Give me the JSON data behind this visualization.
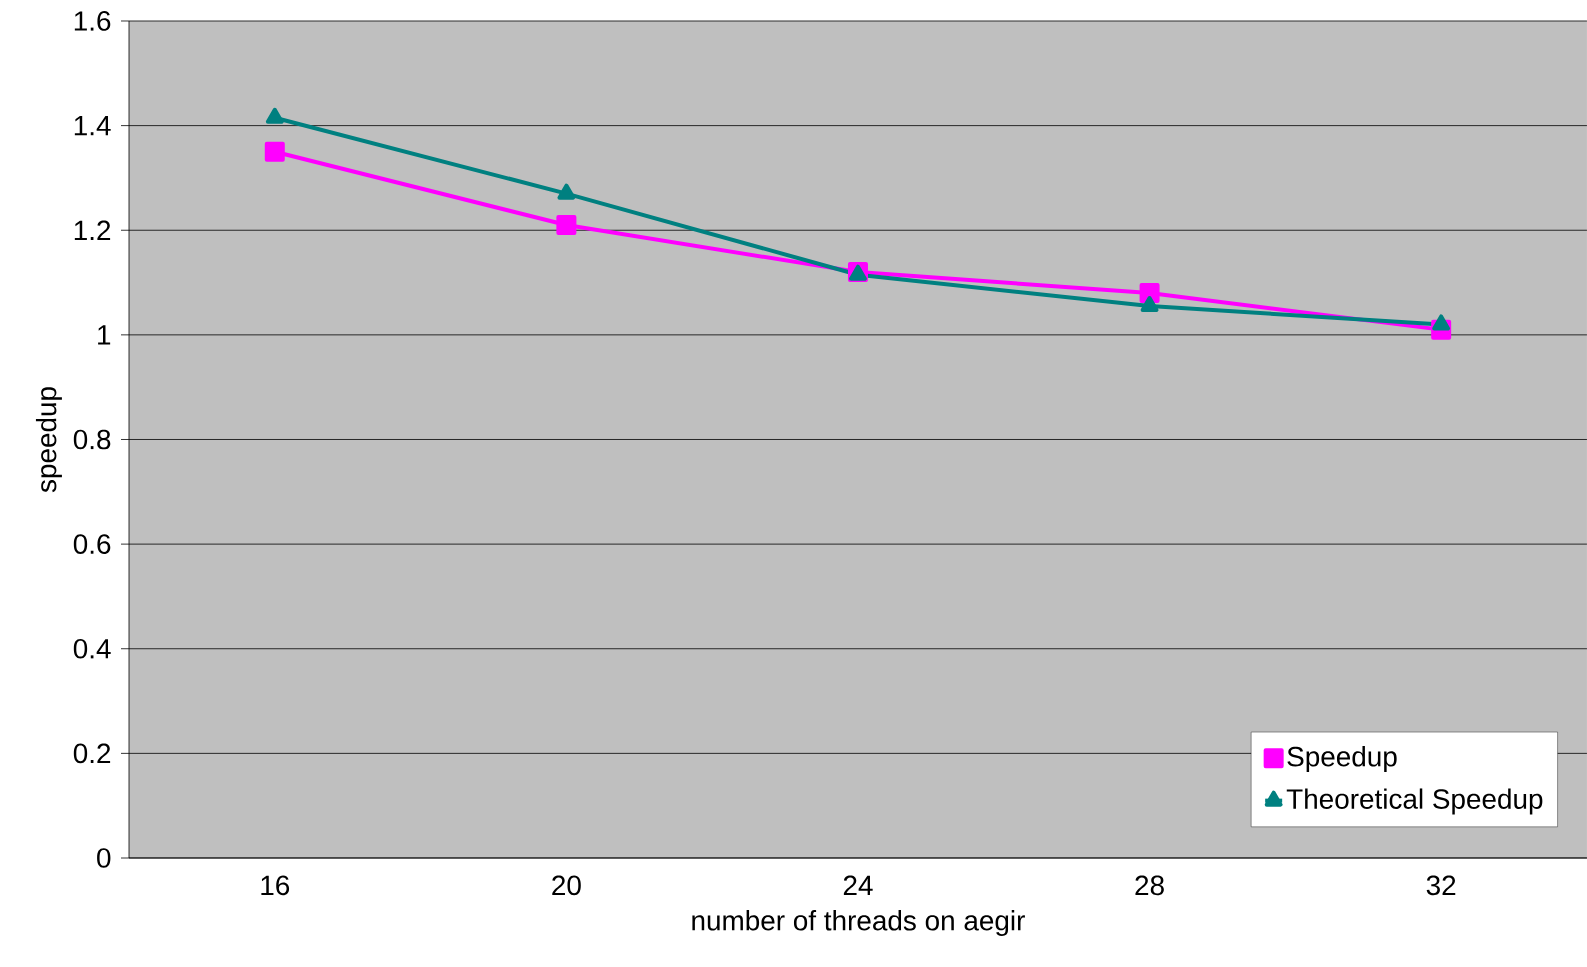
{
  "chart_data": {
    "type": "line",
    "xlabel": "number of threads on aegir",
    "ylabel": "speedup",
    "categories": [
      "16",
      "20",
      "24",
      "28",
      "32"
    ],
    "series": [
      {
        "name": "Speedup",
        "color": "#ff00ff",
        "marker": "square",
        "values": [
          1.35,
          1.21,
          1.12,
          1.08,
          1.01
        ]
      },
      {
        "name": "Theoretical Speedup",
        "color": "#008080",
        "marker": "triangle",
        "values": [
          1.415,
          1.27,
          1.115,
          1.055,
          1.02
        ]
      }
    ],
    "ylim": [
      0,
      1.6
    ],
    "yticks": [
      0,
      0.2,
      0.4,
      0.6,
      0.8,
      1,
      1.2,
      1.4,
      1.6
    ],
    "grid": "y",
    "legend": "bottom right"
  }
}
